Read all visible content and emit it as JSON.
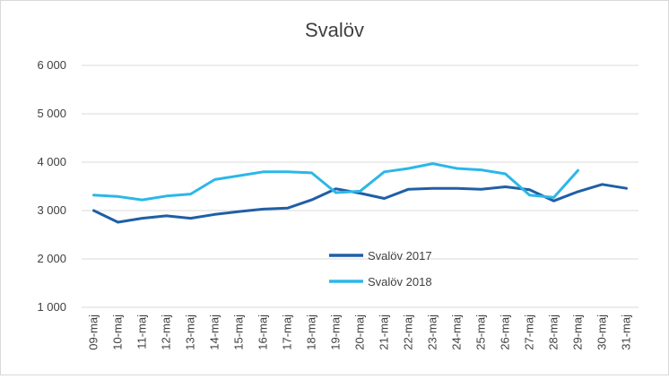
{
  "chart_data": {
    "type": "line",
    "title": "Svalöv",
    "categories": [
      "09-maj",
      "10-maj",
      "11-maj",
      "12-maj",
      "13-maj",
      "14-maj",
      "15-maj",
      "16-maj",
      "17-maj",
      "18-maj",
      "19-maj",
      "20-maj",
      "21-maj",
      "22-maj",
      "23-maj",
      "24-maj",
      "25-maj",
      "26-maj",
      "27-maj",
      "28-maj",
      "29-maj",
      "30-maj",
      "31-maj"
    ],
    "y_tick_labels": [
      "1 000",
      "2 000",
      "3 000",
      "4 000",
      "5 000",
      "6 000"
    ],
    "y_ticks": [
      1000,
      2000,
      3000,
      4000,
      5000,
      6000
    ],
    "ylim": [
      1000,
      6000
    ],
    "grid": true,
    "legend_position": "inside-lower-middle",
    "series": [
      {
        "name": "Svalöv 2017",
        "color": "#1f5fa6",
        "values": [
          3000,
          2760,
          2840,
          2890,
          2840,
          2920,
          2980,
          3030,
          3050,
          3220,
          3450,
          3360,
          3250,
          3440,
          3460,
          3460,
          3440,
          3490,
          3430,
          3200,
          3390,
          3540,
          3460
        ]
      },
      {
        "name": "Svalöv 2018",
        "color": "#2bb7e8",
        "values": [
          3320,
          3290,
          3220,
          3300,
          3340,
          3640,
          3720,
          3800,
          3800,
          3780,
          3370,
          3400,
          3800,
          3870,
          3970,
          3870,
          3840,
          3760,
          3320,
          3270,
          3830,
          null,
          null
        ]
      }
    ]
  }
}
